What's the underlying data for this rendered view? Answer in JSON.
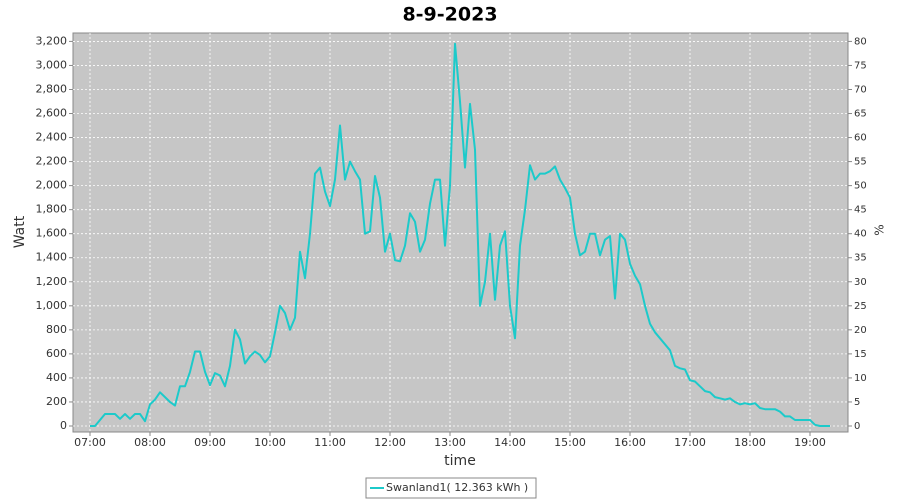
{
  "chart_data": {
    "type": "line",
    "title": "8-9-2023",
    "x_label": "time",
    "y_label": "Watt",
    "y2_label": "%",
    "x": [
      "07:00",
      "07:05",
      "07:10",
      "07:15",
      "07:20",
      "07:25",
      "07:30",
      "07:35",
      "07:40",
      "07:45",
      "07:50",
      "07:55",
      "08:00",
      "08:05",
      "08:10",
      "08:15",
      "08:20",
      "08:25",
      "08:30",
      "08:35",
      "08:40",
      "08:45",
      "08:50",
      "08:55",
      "09:00",
      "09:05",
      "09:10",
      "09:15",
      "09:20",
      "09:25",
      "09:30",
      "09:35",
      "09:40",
      "09:45",
      "09:50",
      "09:55",
      "10:00",
      "10:05",
      "10:10",
      "10:15",
      "10:20",
      "10:25",
      "10:30",
      "10:35",
      "10:40",
      "10:45",
      "10:50",
      "10:55",
      "11:00",
      "11:05",
      "11:10",
      "11:15",
      "11:20",
      "11:25",
      "11:30",
      "11:35",
      "11:40",
      "11:45",
      "11:50",
      "11:55",
      "12:00",
      "12:05",
      "12:10",
      "12:15",
      "12:20",
      "12:25",
      "12:30",
      "12:35",
      "12:40",
      "12:45",
      "12:50",
      "12:55",
      "13:00",
      "13:05",
      "13:10",
      "13:15",
      "13:20",
      "13:25",
      "13:30",
      "13:35",
      "13:40",
      "13:45",
      "13:50",
      "13:55",
      "14:00",
      "14:05",
      "14:10",
      "14:15",
      "14:20",
      "14:25",
      "14:30",
      "14:35",
      "14:40",
      "14:45",
      "14:50",
      "14:55",
      "15:00",
      "15:05",
      "15:10",
      "15:15",
      "15:20",
      "15:25",
      "15:30",
      "15:35",
      "15:40",
      "15:45",
      "15:50",
      "15:55",
      "16:00",
      "16:05",
      "16:10",
      "16:15",
      "16:20",
      "16:25",
      "16:30",
      "16:35",
      "16:40",
      "16:45",
      "16:50",
      "16:55",
      "17:00",
      "17:05",
      "17:10",
      "17:15",
      "17:20",
      "17:25",
      "17:30",
      "17:35",
      "17:40",
      "17:45",
      "17:50",
      "17:55",
      "18:00",
      "18:05",
      "18:10",
      "18:15",
      "18:20",
      "18:25",
      "18:30",
      "18:35",
      "18:40",
      "18:45",
      "18:50",
      "18:55",
      "19:00",
      "19:05",
      "19:10",
      "19:15",
      "19:20"
    ],
    "series": [
      {
        "name": "Swanland1( 12.363 kWh )",
        "color": "#1ccaca",
        "values": [
          0,
          0,
          50,
          100,
          100,
          100,
          60,
          100,
          60,
          100,
          100,
          40,
          180,
          220,
          280,
          240,
          200,
          170,
          330,
          330,
          450,
          620,
          620,
          450,
          340,
          440,
          420,
          330,
          500,
          800,
          720,
          520,
          580,
          620,
          590,
          530,
          580,
          780,
          1000,
          940,
          800,
          900,
          1450,
          1230,
          1600,
          2100,
          2150,
          1950,
          1830,
          2050,
          2500,
          2050,
          2200,
          2120,
          2050,
          1600,
          1620,
          2080,
          1900,
          1450,
          1600,
          1380,
          1370,
          1500,
          1770,
          1700,
          1450,
          1550,
          1850,
          2050,
          2050,
          1500,
          2000,
          3180,
          2700,
          2150,
          2680,
          2300,
          1000,
          1200,
          1600,
          1050,
          1500,
          1620,
          1000,
          730,
          1500,
          1800,
          2170,
          2050,
          2100,
          2100,
          2120,
          2160,
          2050,
          1980,
          1900,
          1600,
          1420,
          1450,
          1600,
          1600,
          1420,
          1550,
          1580,
          1060,
          1600,
          1550,
          1350,
          1250,
          1180,
          1000,
          850,
          780,
          730,
          680,
          630,
          500,
          480,
          470,
          380,
          370,
          330,
          290,
          280,
          240,
          230,
          220,
          230,
          200,
          180,
          190,
          180,
          190,
          150,
          140,
          140,
          140,
          120,
          80,
          80,
          50,
          50,
          50,
          50,
          10,
          0,
          0,
          0
        ]
      }
    ],
    "xlim": [
      "06:43",
      "19:38"
    ],
    "xticks": [
      "07:00",
      "08:00",
      "09:00",
      "10:00",
      "11:00",
      "12:00",
      "13:00",
      "14:00",
      "15:00",
      "16:00",
      "17:00",
      "18:00",
      "19:00"
    ],
    "ylim": [
      -50,
      3270
    ],
    "yticks": [
      0,
      200,
      400,
      600,
      800,
      {
        "value": 1000,
        "label": "1,000"
      },
      {
        "value": 1200,
        "label": "1,200"
      },
      {
        "value": 1400,
        "label": "1,400"
      },
      {
        "value": 1600,
        "label": "1,600"
      },
      {
        "value": 1800,
        "label": "1,800"
      },
      {
        "value": 2000,
        "label": "2,000"
      },
      {
        "value": 2200,
        "label": "2,200"
      },
      {
        "value": 2400,
        "label": "2,400"
      },
      {
        "value": 2600,
        "label": "2,600"
      },
      {
        "value": 2800,
        "label": "2,800"
      },
      {
        "value": 3000,
        "label": "3,000"
      },
      {
        "value": 3200,
        "label": "3,200"
      }
    ],
    "y2lim": [
      -1.25,
      81.75
    ],
    "y2ticks": [
      0,
      5,
      10,
      15,
      20,
      25,
      30,
      35,
      40,
      45,
      50,
      55,
      60,
      65,
      70,
      75,
      80
    ],
    "grid": true,
    "legend": "bottom"
  }
}
